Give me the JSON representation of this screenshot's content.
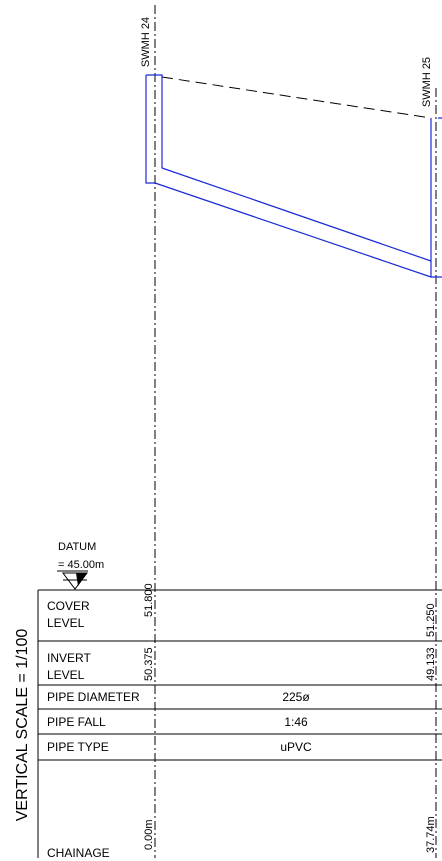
{
  "manholes": [
    {
      "name": "SWMH 24",
      "chainage": "0.00m",
      "cover_level": "51.800",
      "invert_level": "50.375"
    },
    {
      "name": "SWMH 25",
      "chainage": "37.74m",
      "cover_level": "51.250",
      "invert_level": "49.133"
    }
  ],
  "pipe": {
    "diameter": "225ø",
    "fall": "1:46",
    "type": "uPVC"
  },
  "datum": {
    "label_line1": "DATUM",
    "label_line2": "= 45.00m"
  },
  "table": {
    "row_labels": {
      "cover_line1": "COVER",
      "cover_line2": "LEVEL",
      "invert_line1": "INVERT",
      "invert_line2": "LEVEL",
      "diameter": "PIPE DIAMETER",
      "fall": "PIPE FALL",
      "type": "PIPE TYPE",
      "chainage": "CHAINAGE"
    }
  },
  "vertical_scale": "VERTICAL SCALE = 1/100",
  "colors": {
    "pipe": "#1a2bd6",
    "lines": "#000000"
  }
}
